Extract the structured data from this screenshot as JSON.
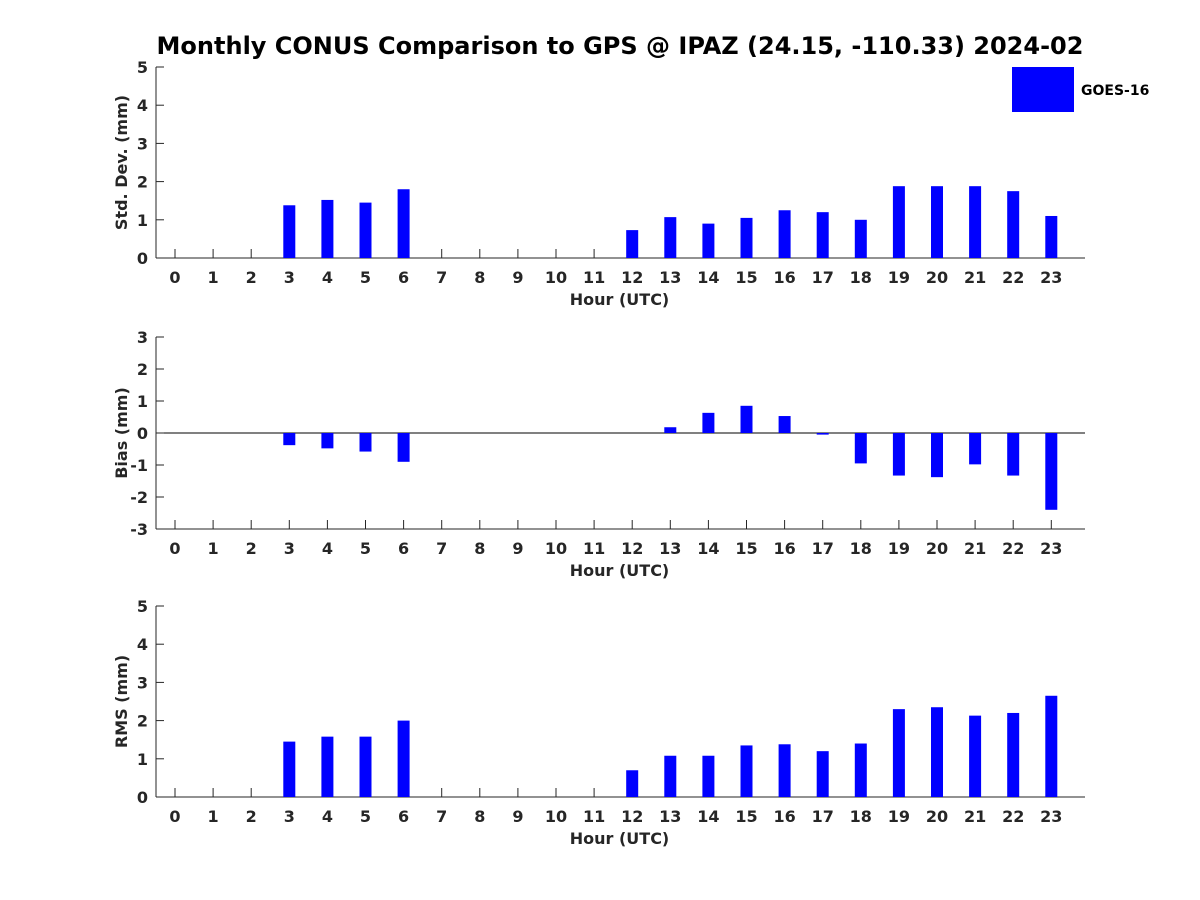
{
  "title": "Monthly CONUS Comparison to GPS @ IPAZ (24.15, -110.33) 2024-02",
  "legend": {
    "label": "GOES-16",
    "color": "#0000ff"
  },
  "chart_data": [
    {
      "type": "bar",
      "ylabel": "Std. Dev. (mm)",
      "xlabel": "Hour (UTC)",
      "ylim": [
        0,
        5
      ],
      "yticks": [
        0,
        1,
        2,
        3,
        4,
        5
      ],
      "categories": [
        "0",
        "1",
        "2",
        "3",
        "4",
        "5",
        "6",
        "7",
        "8",
        "9",
        "10",
        "11",
        "12",
        "13",
        "14",
        "15",
        "16",
        "17",
        "18",
        "19",
        "20",
        "21",
        "22",
        "23"
      ],
      "series": [
        {
          "name": "GOES-16",
          "values": [
            null,
            null,
            null,
            1.38,
            1.52,
            1.45,
            1.8,
            null,
            null,
            null,
            null,
            null,
            0.73,
            1.07,
            0.9,
            1.05,
            1.25,
            1.2,
            1.0,
            1.88,
            1.88,
            1.88,
            1.75,
            1.1
          ]
        }
      ]
    },
    {
      "type": "bar",
      "ylabel": "Bias (mm)",
      "xlabel": "Hour (UTC)",
      "ylim": [
        -3,
        3
      ],
      "yticks": [
        -3,
        -2,
        -1,
        0,
        1,
        2,
        3
      ],
      "categories": [
        "0",
        "1",
        "2",
        "3",
        "4",
        "5",
        "6",
        "7",
        "8",
        "9",
        "10",
        "11",
        "12",
        "13",
        "14",
        "15",
        "16",
        "17",
        "18",
        "19",
        "20",
        "21",
        "22",
        "23"
      ],
      "series": [
        {
          "name": "GOES-16",
          "values": [
            null,
            null,
            null,
            -0.38,
            -0.48,
            -0.58,
            -0.9,
            null,
            null,
            null,
            null,
            null,
            null,
            0.18,
            0.63,
            0.85,
            0.53,
            -0.05,
            -0.95,
            -1.33,
            -1.38,
            -0.98,
            -1.33,
            -2.4
          ]
        }
      ]
    },
    {
      "type": "bar",
      "ylabel": "RMS (mm)",
      "xlabel": "Hour (UTC)",
      "ylim": [
        0,
        5
      ],
      "yticks": [
        0,
        1,
        2,
        3,
        4,
        5
      ],
      "categories": [
        "0",
        "1",
        "2",
        "3",
        "4",
        "5",
        "6",
        "7",
        "8",
        "9",
        "10",
        "11",
        "12",
        "13",
        "14",
        "15",
        "16",
        "17",
        "18",
        "19",
        "20",
        "21",
        "22",
        "23"
      ],
      "series": [
        {
          "name": "GOES-16",
          "values": [
            null,
            null,
            null,
            1.45,
            1.58,
            1.58,
            2.0,
            null,
            null,
            null,
            null,
            null,
            0.7,
            1.08,
            1.08,
            1.35,
            1.38,
            1.2,
            1.4,
            2.3,
            2.35,
            2.13,
            2.2,
            2.65
          ]
        }
      ]
    }
  ]
}
